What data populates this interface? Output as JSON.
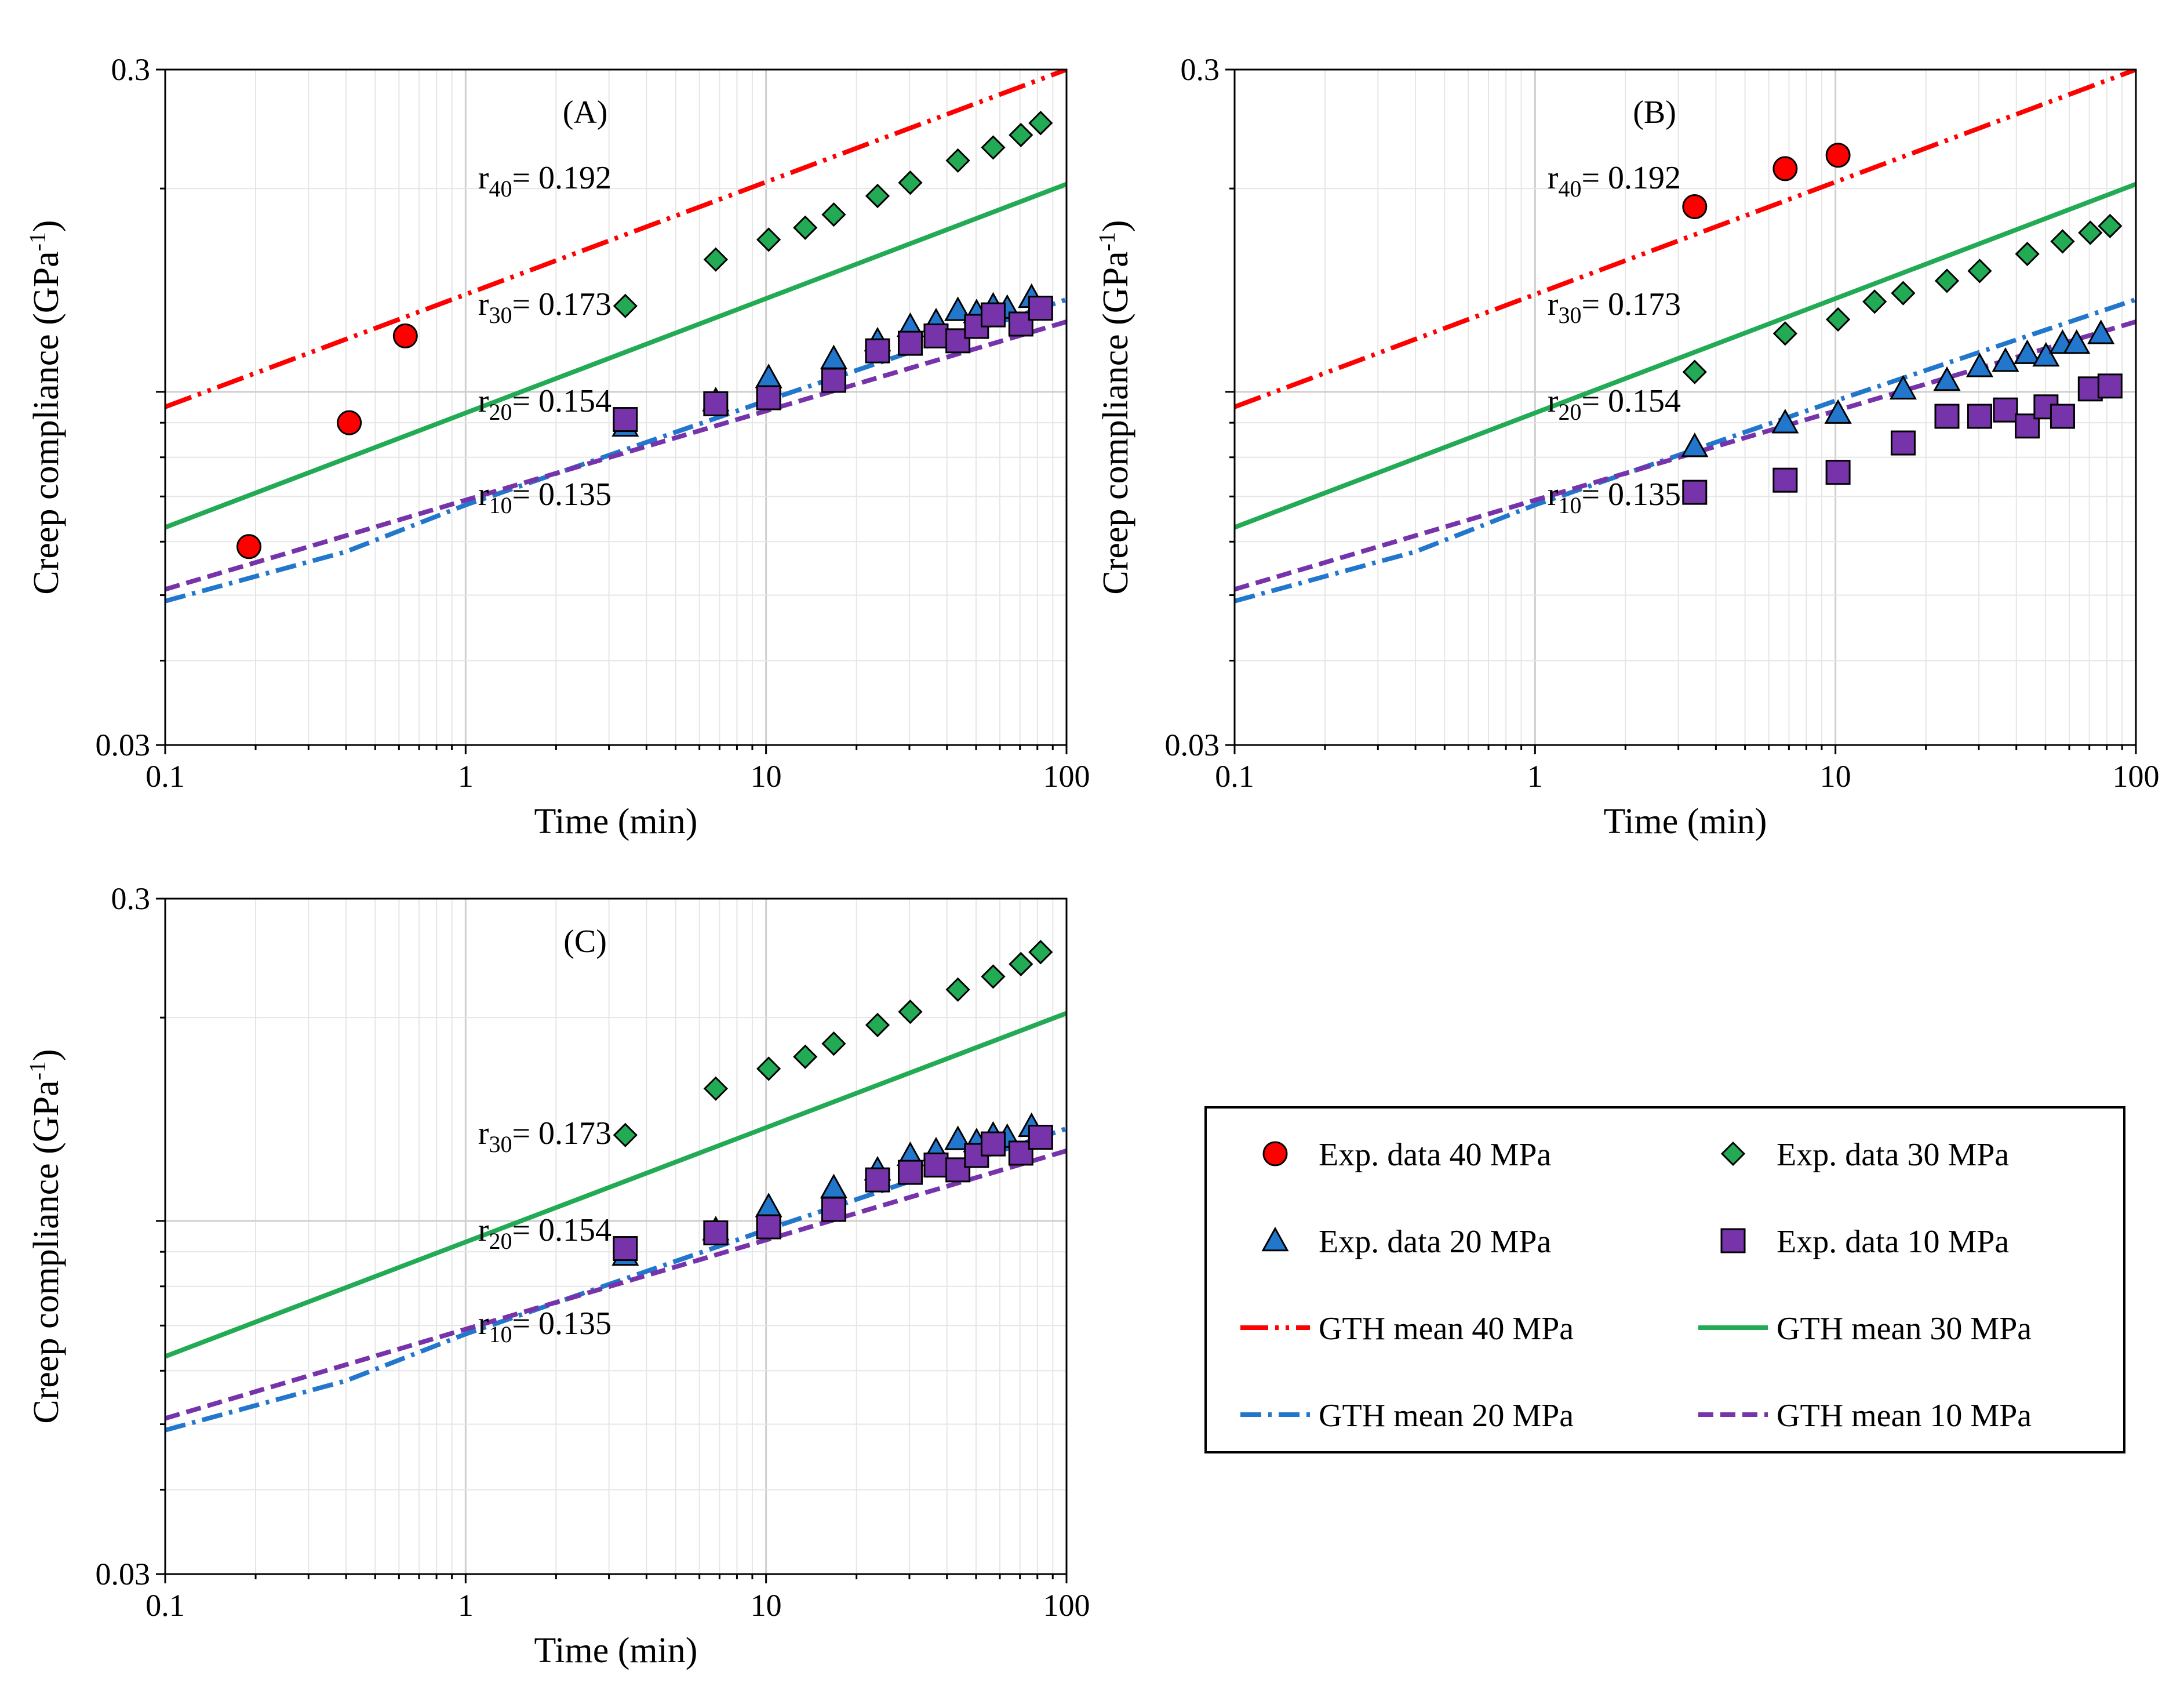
{
  "chart_data": [
    {
      "type": "scatter",
      "panel": "(A)",
      "xscale": "log",
      "yscale": "log",
      "xlim": [
        0.1,
        100
      ],
      "ylim": [
        0.03,
        0.3
      ],
      "xlabel": "Time (min)",
      "ylabel_main": "Creep compliance (GPa",
      "ylabel_sup": "-1",
      "ylabel_close": ")",
      "xticks": [
        "0.1",
        "1",
        "10",
        "100"
      ],
      "yticks": [
        "0.03",
        "0.3"
      ],
      "r_labels": [
        {
          "sub": "40",
          "value": "= 0.192",
          "y_data": 0.2
        },
        {
          "sub": "30",
          "value": "= 0.173",
          "y_data": 0.13
        },
        {
          "sub": "20",
          "value": "= 0.154",
          "y_data": 0.0935
        },
        {
          "sub": "10",
          "value": "= 0.135",
          "y_data": 0.068
        }
      ],
      "series": [
        {
          "name": "Exp. data 40 MPa",
          "marker": "circle",
          "color": "#ff0000",
          "x": [
            0.19,
            0.41,
            0.63
          ],
          "y": [
            0.059,
            0.09,
            0.121
          ]
        },
        {
          "name": "Exp. data 30 MPa",
          "marker": "diamond",
          "color": "#22aa55",
          "x": [
            3.4,
            6.8,
            10.2,
            13.5,
            16.8,
            23.5,
            30.2,
            43.5,
            57,
            70.5,
            82
          ],
          "y": [
            0.134,
            0.157,
            0.168,
            0.175,
            0.183,
            0.195,
            0.204,
            0.22,
            0.23,
            0.24,
            0.25
          ]
        },
        {
          "name": "Exp. data 20 MPa",
          "marker": "triangle",
          "color": "#2277cc",
          "x": [
            3.4,
            6.8,
            10.2,
            16.8,
            23.5,
            30.2,
            36.8,
            43.5,
            50.2,
            57,
            63.5,
            76.5
          ],
          "y": [
            0.089,
            0.097,
            0.105,
            0.112,
            0.119,
            0.125,
            0.127,
            0.132,
            0.131,
            0.134,
            0.133,
            0.138
          ]
        },
        {
          "name": "Exp. data 10 MPa",
          "marker": "square",
          "color": "#7733aa",
          "x": [
            3.4,
            6.8,
            10.2,
            16.8,
            23.5,
            30.2,
            36.8,
            43.5,
            50.2,
            57,
            70.5,
            82
          ],
          "y": [
            0.091,
            0.096,
            0.098,
            0.104,
            0.115,
            0.118,
            0.121,
            0.119,
            0.125,
            0.13,
            0.126,
            0.133
          ]
        }
      ],
      "lines": [
        {
          "name": "GTH mean 40 MPa",
          "style": "dashdotdot",
          "color": "#ff0000",
          "x": [
            0.1,
            100
          ],
          "y": [
            0.095,
            0.3
          ]
        },
        {
          "name": "GTH mean 30 MPa",
          "style": "solid",
          "color": "#22aa55",
          "x": [
            0.1,
            100
          ],
          "y": [
            0.063,
            0.203
          ]
        },
        {
          "name": "GTH mean 20 MPa",
          "style": "dashdot",
          "color": "#2277cc",
          "x": [
            0.1,
            0.4,
            1,
            10,
            100
          ],
          "y": [
            0.049,
            0.058,
            0.068,
            0.097,
            0.137
          ]
        },
        {
          "name": "GTH mean 10 MPa",
          "style": "dashed",
          "color": "#7733aa",
          "x": [
            0.1,
            100
          ],
          "y": [
            0.051,
            0.127
          ]
        }
      ]
    },
    {
      "type": "scatter",
      "panel": "(B)",
      "xscale": "log",
      "yscale": "log",
      "xlim": [
        0.1,
        100
      ],
      "ylim": [
        0.03,
        0.3
      ],
      "xlabel": "Time (min)",
      "ylabel_main": "Creep compliance (GPa",
      "ylabel_sup": "-1",
      "ylabel_close": ")",
      "xticks": [
        "0.1",
        "1",
        "10",
        "100"
      ],
      "yticks": [
        "0.03",
        "0.3"
      ],
      "r_labels": [
        {
          "sub": "40",
          "value": "= 0.192",
          "y_data": 0.2
        },
        {
          "sub": "30",
          "value": "= 0.173",
          "y_data": 0.13
        },
        {
          "sub": "20",
          "value": "= 0.154",
          "y_data": 0.0935
        },
        {
          "sub": "10",
          "value": "= 0.135",
          "y_data": 0.068
        }
      ],
      "series": [
        {
          "name": "Exp. data 40 MPa",
          "marker": "circle",
          "color": "#ff0000",
          "x": [
            3.4,
            6.8,
            10.2
          ],
          "y": [
            0.188,
            0.214,
            0.224
          ]
        },
        {
          "name": "Exp. data 30 MPa",
          "marker": "diamond",
          "color": "#22aa55",
          "x": [
            3.4,
            6.8,
            10.2,
            13.5,
            16.8,
            23.5,
            30.2,
            43.5,
            57,
            70.5,
            82
          ],
          "y": [
            0.107,
            0.122,
            0.128,
            0.136,
            0.14,
            0.146,
            0.151,
            0.16,
            0.167,
            0.172,
            0.176
          ]
        },
        {
          "name": "Exp. data 20 MPa",
          "marker": "triangle",
          "color": "#2277cc",
          "x": [
            3.4,
            6.8,
            10.2,
            16.8,
            23.5,
            30.2,
            36.8,
            43.5,
            50.2,
            57,
            63.5,
            76.5
          ],
          "y": [
            0.083,
            0.09,
            0.093,
            0.101,
            0.104,
            0.109,
            0.111,
            0.114,
            0.113,
            0.118,
            0.118,
            0.122
          ]
        },
        {
          "name": "Exp. data 10 MPa",
          "marker": "square",
          "color": "#7733aa",
          "x": [
            3.4,
            6.8,
            10.2,
            16.8,
            23.5,
            30.2,
            36.8,
            43.5,
            50.2,
            57,
            70.5,
            82
          ],
          "y": [
            0.071,
            0.074,
            0.076,
            0.084,
            0.092,
            0.092,
            0.094,
            0.089,
            0.095,
            0.092,
            0.101,
            0.102
          ]
        }
      ],
      "lines": [
        {
          "name": "GTH mean 40 MPa",
          "style": "dashdotdot",
          "color": "#ff0000",
          "x": [
            0.1,
            100
          ],
          "y": [
            0.095,
            0.3
          ]
        },
        {
          "name": "GTH mean 30 MPa",
          "style": "solid",
          "color": "#22aa55",
          "x": [
            0.1,
            100
          ],
          "y": [
            0.063,
            0.203
          ]
        },
        {
          "name": "GTH mean 20 MPa",
          "style": "dashdot",
          "color": "#2277cc",
          "x": [
            0.1,
            0.4,
            1,
            10,
            100
          ],
          "y": [
            0.049,
            0.058,
            0.068,
            0.097,
            0.137
          ]
        },
        {
          "name": "GTH mean 10 MPa",
          "style": "dashed",
          "color": "#7733aa",
          "x": [
            0.1,
            100
          ],
          "y": [
            0.051,
            0.127
          ]
        }
      ]
    },
    {
      "type": "scatter",
      "panel": "(C)",
      "xscale": "log",
      "yscale": "log",
      "xlim": [
        0.1,
        100
      ],
      "ylim": [
        0.03,
        0.3
      ],
      "xlabel": "Time (min)",
      "ylabel_main": "Creep compliance (GPa",
      "ylabel_sup": "-1",
      "ylabel_close": ")",
      "xticks": [
        "0.1",
        "1",
        "10",
        "100"
      ],
      "yticks": [
        "0.03",
        "0.3"
      ],
      "r_labels": [
        {
          "sub": "30",
          "value": "= 0.173",
          "y_data": 0.13
        },
        {
          "sub": "20",
          "value": "= 0.154",
          "y_data": 0.0935
        },
        {
          "sub": "10",
          "value": "= 0.135",
          "y_data": 0.068
        }
      ],
      "series": [
        {
          "name": "Exp. data 30 MPa",
          "marker": "diamond",
          "color": "#22aa55",
          "x": [
            3.4,
            6.8,
            10.2,
            13.5,
            16.8,
            23.5,
            30.2,
            43.5,
            57,
            70.5,
            82
          ],
          "y": [
            0.134,
            0.157,
            0.168,
            0.175,
            0.183,
            0.195,
            0.204,
            0.22,
            0.23,
            0.24,
            0.25
          ]
        },
        {
          "name": "Exp. data 20 MPa",
          "marker": "triangle",
          "color": "#2277cc",
          "x": [
            3.4,
            6.8,
            10.2,
            16.8,
            23.5,
            30.2,
            36.8,
            43.5,
            50.2,
            57,
            63.5,
            76.5
          ],
          "y": [
            0.089,
            0.097,
            0.105,
            0.112,
            0.119,
            0.125,
            0.127,
            0.132,
            0.131,
            0.134,
            0.133,
            0.138
          ]
        },
        {
          "name": "Exp. data 10 MPa",
          "marker": "square",
          "color": "#7733aa",
          "x": [
            3.4,
            6.8,
            10.2,
            16.8,
            23.5,
            30.2,
            36.8,
            43.5,
            50.2,
            57,
            70.5,
            82
          ],
          "y": [
            0.091,
            0.096,
            0.098,
            0.104,
            0.115,
            0.118,
            0.121,
            0.119,
            0.125,
            0.13,
            0.126,
            0.133
          ]
        }
      ],
      "lines": [
        {
          "name": "GTH mean 30 MPa",
          "style": "solid",
          "color": "#22aa55",
          "x": [
            0.1,
            100
          ],
          "y": [
            0.063,
            0.203
          ]
        },
        {
          "name": "GTH mean 20 MPa",
          "style": "dashdot",
          "color": "#2277cc",
          "x": [
            0.1,
            0.4,
            1,
            10,
            100
          ],
          "y": [
            0.049,
            0.058,
            0.068,
            0.097,
            0.137
          ]
        },
        {
          "name": "GTH mean 10 MPa",
          "style": "dashed",
          "color": "#7733aa",
          "x": [
            0.1,
            100
          ],
          "y": [
            0.051,
            0.127
          ]
        }
      ]
    }
  ],
  "legend": {
    "items": [
      {
        "label": "Exp. data 40 MPa",
        "kind": "marker",
        "marker": "circle",
        "color": "#ff0000"
      },
      {
        "label": "Exp. data 30 MPa",
        "kind": "marker",
        "marker": "diamond",
        "color": "#22aa55"
      },
      {
        "label": "Exp. data 20 MPa",
        "kind": "marker",
        "marker": "triangle",
        "color": "#2277cc"
      },
      {
        "label": "Exp. data 10 MPa",
        "kind": "marker",
        "marker": "square",
        "color": "#7733aa"
      },
      {
        "label": "GTH mean 40 MPa",
        "kind": "line",
        "style": "dashdotdot",
        "color": "#ff0000"
      },
      {
        "label": "GTH mean 30 MPa",
        "kind": "line",
        "style": "solid",
        "color": "#22aa55"
      },
      {
        "label": "GTH mean 20 MPa",
        "kind": "line",
        "style": "dashdot",
        "color": "#2277cc"
      },
      {
        "label": "GTH mean 10 MPa",
        "kind": "line",
        "style": "dashed",
        "color": "#7733aa"
      }
    ]
  }
}
